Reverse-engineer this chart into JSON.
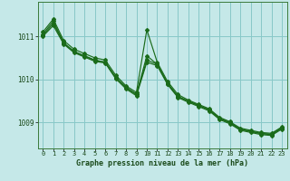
{
  "title": "Graphe pression niveau de la mer (hPa)",
  "bg_color": "#c5e8e8",
  "grid_color": "#88c8c8",
  "line_color": "#1a6b1a",
  "spine_color": "#3a7a3a",
  "xlim": [
    -0.5,
    23.5
  ],
  "ylim": [
    1008.4,
    1011.8
  ],
  "yticks": [
    1009,
    1010,
    1011
  ],
  "xticks": [
    0,
    1,
    2,
    3,
    4,
    5,
    6,
    7,
    8,
    9,
    10,
    11,
    12,
    13,
    14,
    15,
    16,
    17,
    18,
    19,
    20,
    21,
    22,
    23
  ],
  "series": [
    [
      1011.05,
      1011.35,
      1010.85,
      1010.65,
      1010.55,
      1010.45,
      1010.4,
      1010.05,
      1009.8,
      1009.65,
      1010.55,
      1010.35,
      1009.9,
      1009.6,
      1009.5,
      1009.4,
      1009.3,
      1009.1,
      1009.0,
      1008.85,
      1008.8,
      1008.75,
      1008.73,
      1008.88
    ],
    [
      1011.1,
      1011.4,
      1010.9,
      1010.7,
      1010.6,
      1010.5,
      1010.45,
      1010.1,
      1009.85,
      1009.7,
      1011.15,
      1010.4,
      1009.95,
      1009.65,
      1009.52,
      1009.42,
      1009.32,
      1009.12,
      1009.02,
      1008.87,
      1008.82,
      1008.77,
      1008.75,
      1008.9
    ],
    [
      1011.0,
      1011.25,
      1010.82,
      1010.62,
      1010.52,
      1010.42,
      1010.38,
      1010.02,
      1009.78,
      1009.62,
      1010.4,
      1010.32,
      1009.88,
      1009.58,
      1009.47,
      1009.37,
      1009.27,
      1009.07,
      1008.97,
      1008.82,
      1008.77,
      1008.72,
      1008.7,
      1008.85
    ],
    [
      1011.02,
      1011.3,
      1010.84,
      1010.64,
      1010.54,
      1010.44,
      1010.4,
      1010.04,
      1009.82,
      1009.66,
      1010.45,
      1010.35,
      1009.91,
      1009.61,
      1009.49,
      1009.39,
      1009.29,
      1009.09,
      1008.99,
      1008.84,
      1008.79,
      1008.74,
      1008.72,
      1008.87
    ]
  ]
}
